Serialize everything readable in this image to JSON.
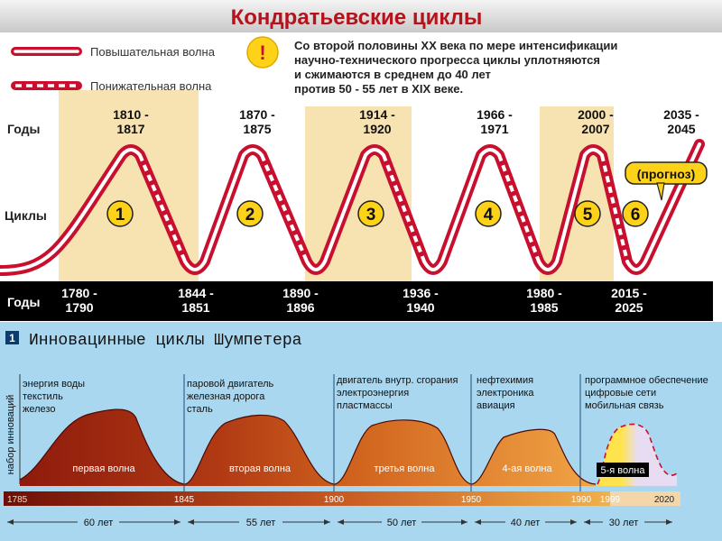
{
  "kondratiev": {
    "title": "Кондратьевские циклы",
    "legend": {
      "rising": "Повышательная волна",
      "falling": "Понижательная волна"
    },
    "note_lines": [
      "Со второй половины XX века  по мере интенсификации",
      "научно-технического прогресса  циклы  уплотняются",
      "и сжимаются в среднем до 40 лет",
      "против 50 - 55 лет в XIX веке."
    ],
    "years_label": "Годы",
    "cycles_label": "Циклы",
    "bottom_years_label": "Годы",
    "forecast_label": "(прогноз)",
    "cycle_numbers": [
      "1",
      "2",
      "3",
      "4",
      "5",
      "6"
    ],
    "peaks": [
      [
        "1810 -",
        "1817"
      ],
      [
        "1870 -",
        "1875"
      ],
      [
        "1914 -",
        "1920"
      ],
      [
        "1966 -",
        "1971"
      ],
      [
        "2000 -",
        "2007"
      ],
      [
        "2035 -",
        "2045"
      ]
    ],
    "troughs": [
      [
        "1780 -",
        "1790"
      ],
      [
        "1844 -",
        "1851"
      ],
      [
        "1890 -",
        "1896"
      ],
      [
        "1936 -",
        "1940"
      ],
      [
        "1980 -",
        "1985"
      ],
      [
        "2015 -",
        "2025"
      ]
    ],
    "colors": {
      "wave": "#c8102e",
      "band": "#f7e3b2",
      "title": "#b5121b",
      "badge": "#ffd21a"
    }
  },
  "schumpeter": {
    "badge": "1",
    "title": "Инновацинные циклы Шумпетера",
    "y_axis_label": "набор инноваций",
    "waves": [
      {
        "label": "первая волна",
        "innovations": [
          "энергия воды",
          "текстиль",
          "железо"
        ]
      },
      {
        "label": "вторая волна",
        "innovations": [
          "паровой двигатель",
          "железная дорога",
          "сталь"
        ]
      },
      {
        "label": "третья волна",
        "innovations": [
          "двигатель внутр. сгорания",
          "электроэнергия",
          "пластмассы"
        ]
      },
      {
        "label": "4-ая волна",
        "innovations": [
          "нефтехимия",
          "электроника",
          "авиация"
        ]
      },
      {
        "label": "5-я волна",
        "innovations": [
          "программное обеспечение",
          "цифровые сети",
          "мобильная связь"
        ]
      }
    ],
    "timeline_years": [
      "1785",
      "1845",
      "1900",
      "1950",
      "1990",
      "1999",
      "2020"
    ],
    "durations": [
      "60 лет",
      "55 лет",
      "50 лет",
      "40 лет",
      "30 лет"
    ],
    "colors": {
      "background": "#a9d7f0",
      "wave_dark": "#8e1a0c",
      "wave_light": "#f1a446",
      "wave5": "#ffe34d"
    }
  }
}
